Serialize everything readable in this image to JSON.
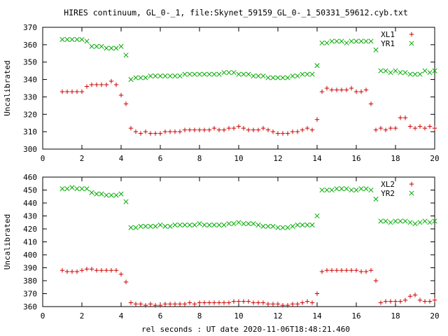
{
  "figure_title": "HIRES continuum, GL_0-_1, file:Skynet_59159_GL_0-_1_50331_59612.cyb.txt",
  "shared_xlabel": "rel seconds : UT date 2020-11-06T18:48:21.460",
  "colors": {
    "red": "#cc0000",
    "green": "#00aa00",
    "axis": "#000000",
    "background": "#ffffff"
  },
  "chart_data": [
    {
      "type": "scatter",
      "title": "",
      "xlabel": "",
      "ylabel": "Uncalibrated",
      "xlim": [
        0,
        20
      ],
      "ylim": [
        300,
        370
      ],
      "xticks": [
        0,
        2,
        4,
        6,
        8,
        10,
        12,
        14,
        16,
        18,
        20
      ],
      "yticks": [
        300,
        310,
        320,
        330,
        340,
        350,
        360,
        370
      ],
      "grid": false,
      "legend": "top-right",
      "series": [
        {
          "name": "XL1",
          "marker": "plus",
          "color": "#cc0000",
          "x": [
            1.0,
            1.25,
            1.5,
            1.75,
            2.0,
            2.25,
            2.5,
            2.75,
            3.0,
            3.25,
            3.5,
            3.75,
            4.0,
            4.25,
            4.5,
            4.75,
            5.0,
            5.25,
            5.5,
            5.75,
            6.0,
            6.25,
            6.5,
            6.75,
            7.0,
            7.25,
            7.5,
            7.75,
            8.0,
            8.25,
            8.5,
            8.75,
            9.0,
            9.25,
            9.5,
            9.75,
            10.0,
            10.25,
            10.5,
            10.75,
            11.0,
            11.25,
            11.5,
            11.75,
            12.0,
            12.25,
            12.5,
            12.75,
            13.0,
            13.25,
            13.5,
            13.75,
            14.0,
            14.25,
            14.5,
            14.75,
            15.0,
            15.25,
            15.5,
            15.75,
            16.0,
            16.25,
            16.5,
            16.75,
            17.0,
            17.25,
            17.5,
            17.75,
            18.0,
            18.25,
            18.5,
            18.75,
            19.0,
            19.25,
            19.5,
            19.75,
            20.0
          ],
          "y": [
            333,
            333,
            333,
            333,
            333,
            336,
            337,
            337,
            337,
            337,
            339,
            337,
            331,
            326,
            312,
            310,
            309,
            310,
            309,
            309,
            309,
            310,
            310,
            310,
            310,
            311,
            311,
            311,
            311,
            311,
            311,
            312,
            311,
            311,
            312,
            312,
            313,
            312,
            311,
            311,
            311,
            312,
            311,
            310,
            309,
            309,
            309,
            310,
            310,
            311,
            312,
            311,
            317,
            333,
            335,
            334,
            334,
            334,
            334,
            335,
            333,
            333,
            334,
            326,
            311,
            312,
            311,
            312,
            312,
            318,
            318,
            313,
            312,
            313,
            312,
            313,
            312
          ]
        },
        {
          "name": "YR1",
          "marker": "cross",
          "color": "#00aa00",
          "x": [
            1.0,
            1.25,
            1.5,
            1.75,
            2.0,
            2.25,
            2.5,
            2.75,
            3.0,
            3.25,
            3.5,
            3.75,
            4.0,
            4.25,
            4.5,
            4.75,
            5.0,
            5.25,
            5.5,
            5.75,
            6.0,
            6.25,
            6.5,
            6.75,
            7.0,
            7.25,
            7.5,
            7.75,
            8.0,
            8.25,
            8.5,
            8.75,
            9.0,
            9.25,
            9.5,
            9.75,
            10.0,
            10.25,
            10.5,
            10.75,
            11.0,
            11.25,
            11.5,
            11.75,
            12.0,
            12.25,
            12.5,
            12.75,
            13.0,
            13.25,
            13.5,
            13.75,
            14.0,
            14.25,
            14.5,
            14.75,
            15.0,
            15.25,
            15.5,
            15.75,
            16.0,
            16.25,
            16.5,
            16.75,
            17.0,
            17.25,
            17.5,
            17.75,
            18.0,
            18.25,
            18.5,
            18.75,
            19.0,
            19.25,
            19.5,
            19.75,
            20.0
          ],
          "y": [
            363,
            363,
            363,
            363,
            363,
            362,
            359,
            359,
            359,
            358,
            358,
            358,
            359,
            354,
            340,
            341,
            341,
            341,
            342,
            342,
            342,
            342,
            342,
            342,
            342,
            343,
            343,
            343,
            343,
            343,
            343,
            343,
            343,
            344,
            344,
            344,
            343,
            343,
            343,
            342,
            342,
            342,
            341,
            341,
            341,
            341,
            341,
            342,
            342,
            343,
            343,
            343,
            348,
            361,
            361,
            362,
            362,
            362,
            361,
            362,
            362,
            362,
            362,
            362,
            357,
            345,
            345,
            344,
            345,
            344,
            344,
            343,
            343,
            343,
            345,
            344,
            345
          ]
        }
      ]
    },
    {
      "type": "scatter",
      "title": "",
      "xlabel": "rel seconds : UT date 2020-11-06T18:48:21.460",
      "ylabel": "Uncalibrated",
      "xlim": [
        0,
        20
      ],
      "ylim": [
        360,
        460
      ],
      "xticks": [
        0,
        2,
        4,
        6,
        8,
        10,
        12,
        14,
        16,
        18,
        20
      ],
      "yticks": [
        360,
        370,
        380,
        390,
        400,
        410,
        420,
        430,
        440,
        450,
        460
      ],
      "grid": false,
      "legend": "top-right",
      "series": [
        {
          "name": "XL2",
          "marker": "plus",
          "color": "#cc0000",
          "x": [
            1.0,
            1.25,
            1.5,
            1.75,
            2.0,
            2.25,
            2.5,
            2.75,
            3.0,
            3.25,
            3.5,
            3.75,
            4.0,
            4.25,
            4.5,
            4.75,
            5.0,
            5.25,
            5.5,
            5.75,
            6.0,
            6.25,
            6.5,
            6.75,
            7.0,
            7.25,
            7.5,
            7.75,
            8.0,
            8.25,
            8.5,
            8.75,
            9.0,
            9.25,
            9.5,
            9.75,
            10.0,
            10.25,
            10.5,
            10.75,
            11.0,
            11.25,
            11.5,
            11.75,
            12.0,
            12.25,
            12.5,
            12.75,
            13.0,
            13.25,
            13.5,
            13.75,
            14.0,
            14.25,
            14.5,
            14.75,
            15.0,
            15.25,
            15.5,
            15.75,
            16.0,
            16.25,
            16.5,
            16.75,
            17.0,
            17.25,
            17.5,
            17.75,
            18.0,
            18.25,
            18.5,
            18.75,
            19.0,
            19.25,
            19.5,
            19.75,
            20.0
          ],
          "y": [
            388,
            387,
            387,
            387,
            388,
            389,
            389,
            388,
            388,
            388,
            388,
            388,
            385,
            379,
            363,
            362,
            362,
            361,
            362,
            361,
            361,
            362,
            362,
            362,
            362,
            362,
            363,
            362,
            363,
            363,
            363,
            363,
            363,
            363,
            363,
            364,
            364,
            364,
            364,
            363,
            363,
            363,
            362,
            362,
            362,
            361,
            361,
            362,
            362,
            363,
            364,
            363,
            370,
            387,
            388,
            388,
            388,
            388,
            388,
            388,
            388,
            387,
            387,
            388,
            380,
            363,
            364,
            364,
            364,
            364,
            365,
            368,
            369,
            365,
            364,
            364,
            365
          ]
        },
        {
          "name": "YR2",
          "marker": "cross",
          "color": "#00aa00",
          "x": [
            1.0,
            1.25,
            1.5,
            1.75,
            2.0,
            2.25,
            2.5,
            2.75,
            3.0,
            3.25,
            3.5,
            3.75,
            4.0,
            4.25,
            4.5,
            4.75,
            5.0,
            5.25,
            5.5,
            5.75,
            6.0,
            6.25,
            6.5,
            6.75,
            7.0,
            7.25,
            7.5,
            7.75,
            8.0,
            8.25,
            8.5,
            8.75,
            9.0,
            9.25,
            9.5,
            9.75,
            10.0,
            10.25,
            10.5,
            10.75,
            11.0,
            11.25,
            11.5,
            11.75,
            12.0,
            12.25,
            12.5,
            12.75,
            13.0,
            13.25,
            13.5,
            13.75,
            14.0,
            14.25,
            14.5,
            14.75,
            15.0,
            15.25,
            15.5,
            15.75,
            16.0,
            16.25,
            16.5,
            16.75,
            17.0,
            17.25,
            17.5,
            17.75,
            18.0,
            18.25,
            18.5,
            18.75,
            19.0,
            19.25,
            19.5,
            19.75,
            20.0
          ],
          "y": [
            451,
            451,
            452,
            451,
            451,
            451,
            448,
            447,
            447,
            446,
            446,
            446,
            447,
            441,
            421,
            421,
            422,
            422,
            422,
            422,
            423,
            422,
            422,
            423,
            423,
            423,
            423,
            423,
            424,
            423,
            423,
            423,
            423,
            423,
            424,
            424,
            425,
            424,
            424,
            424,
            423,
            422,
            422,
            422,
            421,
            421,
            421,
            422,
            423,
            423,
            423,
            423,
            430,
            450,
            450,
            450,
            451,
            451,
            451,
            450,
            450,
            451,
            451,
            450,
            443,
            426,
            426,
            425,
            426,
            426,
            426,
            425,
            424,
            425,
            426,
            425,
            426
          ]
        }
      ]
    }
  ]
}
